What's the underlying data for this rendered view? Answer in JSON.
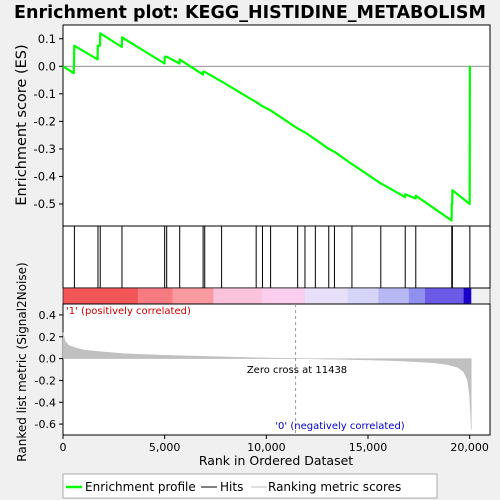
{
  "chart_data": {
    "type": "line",
    "title": "Enrichment plot: KEGG_HISTIDINE_METABOLISM",
    "es_panel": {
      "ylabel": "Enrichment score (ES)",
      "ylim": [
        -0.58,
        0.15
      ],
      "yticks": [
        0.1,
        0.0,
        -0.1,
        -0.2,
        -0.3,
        -0.4,
        -0.5
      ],
      "ytick_labels": [
        "0.1",
        "0.0",
        "-0.1",
        "-0.2",
        "-0.3",
        "-0.4",
        "-0.5"
      ],
      "grid": false,
      "line_color": "#00ff00",
      "series": [
        {
          "name": "Enrichment profile",
          "x": [
            0,
            530,
            555,
            1700,
            1710,
            1820,
            1830,
            2890,
            2900,
            4990,
            5000,
            5090,
            5100,
            5730,
            5740,
            6880,
            6890,
            6960,
            6970,
            7790,
            7800,
            9490,
            9500,
            9800,
            9810,
            10200,
            10210,
            11530,
            11540,
            11890,
            11900,
            12400,
            12410,
            13060,
            13070,
            13340,
            13350,
            14200,
            14210,
            15620,
            15630,
            16820,
            16830,
            17340,
            17350,
            19110,
            19120,
            19140,
            19150,
            20000,
            20010,
            20020
          ],
          "y": [
            0.0,
            -0.025,
            0.075,
            0.025,
            0.075,
            0.075,
            0.12,
            0.07,
            0.105,
            0.01,
            0.035,
            0.035,
            0.035,
            0.01,
            0.025,
            -0.03,
            -0.02,
            -0.02,
            -0.02,
            -0.055,
            -0.055,
            -0.13,
            -0.13,
            -0.145,
            -0.145,
            -0.16,
            -0.16,
            -0.225,
            -0.225,
            -0.24,
            -0.24,
            -0.265,
            -0.265,
            -0.3,
            -0.3,
            -0.31,
            -0.31,
            -0.355,
            -0.355,
            -0.425,
            -0.425,
            -0.475,
            -0.465,
            -0.48,
            -0.47,
            -0.56,
            -0.5,
            -0.5,
            -0.45,
            -0.5,
            0.0,
            0.0
          ]
        }
      ]
    },
    "hits_panel": {
      "hit_positions": [
        560,
        1720,
        1830,
        2900,
        5000,
        5100,
        5740,
        6890,
        6970,
        7800,
        9500,
        9810,
        10210,
        11540,
        11900,
        12410,
        13070,
        13350,
        14210,
        15630,
        16830,
        17350,
        19120,
        19150,
        20010
      ]
    },
    "metric_panel": {
      "ylabel": "Ranked list metric (Signal2Noise)",
      "ylim": [
        -0.7,
        0.5
      ],
      "yticks": [
        0.4,
        0.2,
        0.0,
        -0.2,
        -0.4,
        -0.6
      ],
      "ytick_labels": [
        "0.4",
        "0.2",
        "0.0",
        "-0.2",
        "-0.4",
        "-0.6"
      ],
      "zero_cross": 11438,
      "zero_cross_label": "Zero cross at 11438",
      "positive_label": "'1' (positively correlated)",
      "negative_label": "'0' (negatively correlated)",
      "positive_label_color": "#cc0000",
      "negative_label_color": "#0000cc",
      "fill_color": "#c0c0c0",
      "curve": {
        "x": [
          0,
          100,
          300,
          600,
          1000,
          2000,
          3000,
          5000,
          7000,
          9000,
          11438,
          13000,
          15000,
          16500,
          17500,
          18300,
          18900,
          19400,
          19700,
          19900,
          20000,
          20080
        ],
        "y": [
          0.24,
          0.16,
          0.12,
          0.1,
          0.08,
          0.06,
          0.045,
          0.03,
          0.02,
          0.01,
          0.0,
          -0.005,
          -0.012,
          -0.02,
          -0.03,
          -0.04,
          -0.055,
          -0.08,
          -0.12,
          -0.2,
          -0.35,
          -0.65
        ]
      }
    },
    "xaxis": {
      "xlabel": "Rank in Ordered Dataset",
      "xlim": [
        0,
        21000
      ],
      "xticks": [
        0,
        5000,
        10000,
        15000,
        20000
      ],
      "xtick_labels": [
        "0",
        "5,000",
        "10,000",
        "15,000",
        "20,000"
      ]
    },
    "heatbar": {
      "segments": [
        {
          "x0": 0,
          "x1": 3700,
          "color": "#f25656"
        },
        {
          "x0": 3700,
          "x1": 5400,
          "color": "#f77a80"
        },
        {
          "x0": 5400,
          "x1": 7400,
          "color": "#f99aa0"
        },
        {
          "x0": 7400,
          "x1": 9800,
          "color": "#fbc2dc"
        },
        {
          "x0": 9800,
          "x1": 11900,
          "color": "#fbcdee"
        },
        {
          "x0": 11900,
          "x1": 14000,
          "color": "#e8e0f8"
        },
        {
          "x0": 14000,
          "x1": 15500,
          "color": "#d5d5f7"
        },
        {
          "x0": 15500,
          "x1": 17000,
          "color": "#b8b8f4"
        },
        {
          "x0": 17000,
          "x1": 17800,
          "color": "#9090ee"
        },
        {
          "x0": 17800,
          "x1": 19700,
          "color": "#6a5ae6"
        },
        {
          "x0": 19700,
          "x1": 20080,
          "color": "#1d00c8"
        }
      ]
    },
    "legend": {
      "placement": "bottom",
      "items": [
        {
          "label": "Enrichment profile",
          "color": "#00ff00",
          "kind": "line"
        },
        {
          "label": "Hits",
          "color": "#000000",
          "kind": "line"
        },
        {
          "label": "Ranking metric scores",
          "color": "#c0c0c0",
          "kind": "line"
        }
      ]
    }
  }
}
